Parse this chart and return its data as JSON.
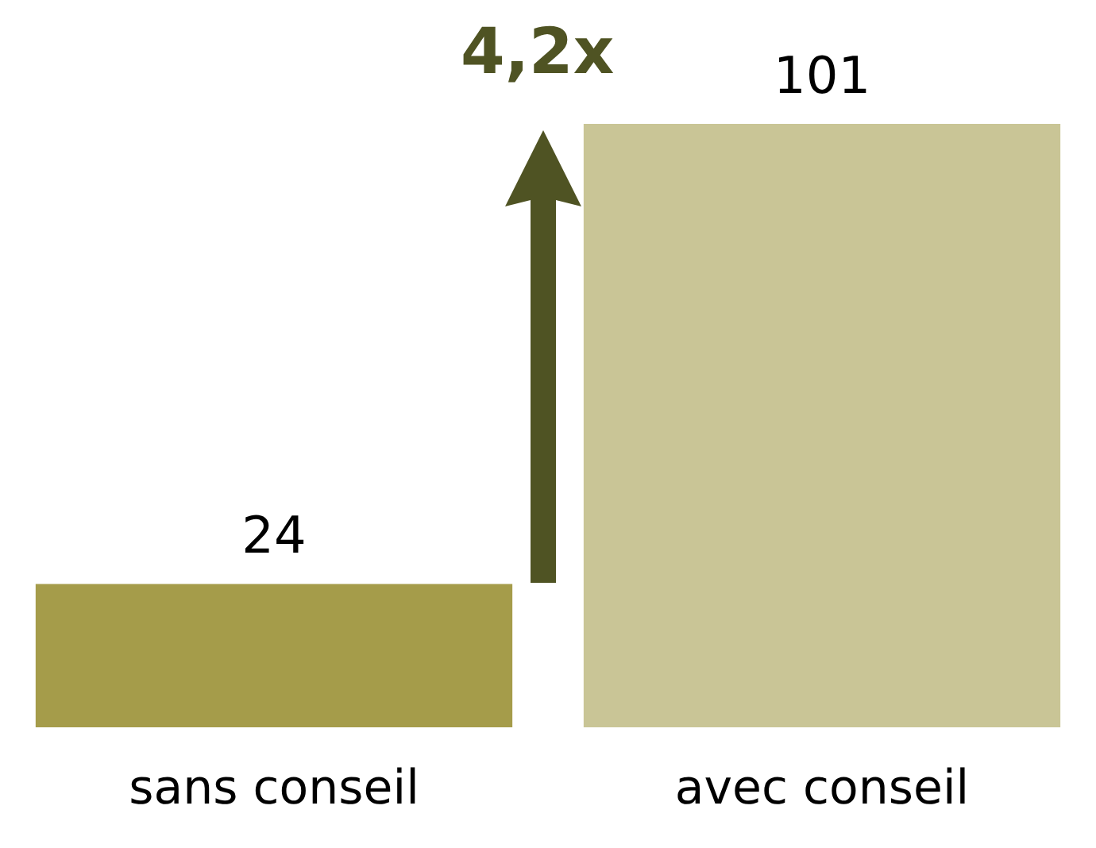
{
  "chart_data": {
    "type": "bar",
    "categories": [
      "sans conseil",
      "avec conseil"
    ],
    "values": [
      24,
      101
    ],
    "colors": [
      "#a59c4a",
      "#c9c596"
    ],
    "data_labels": true,
    "tick_labels": "x",
    "annotations": [
      "4,2x"
    ]
  }
}
